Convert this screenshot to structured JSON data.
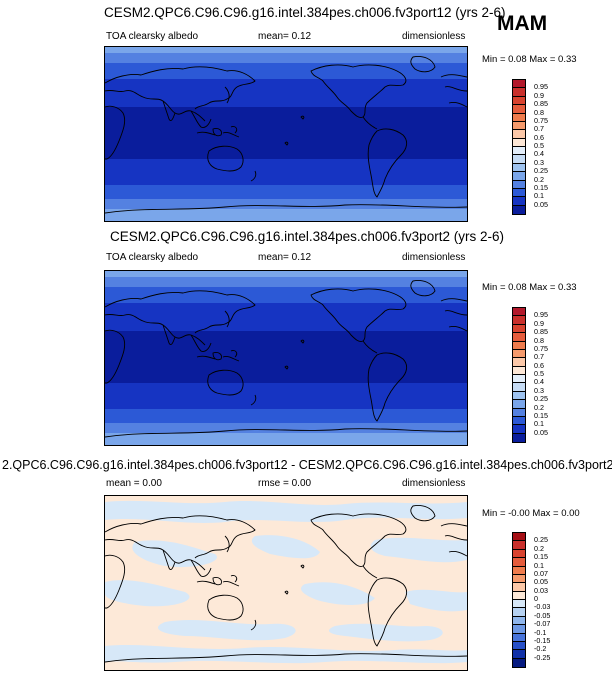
{
  "season": "MAM",
  "panels": [
    {
      "title": "CESM2.QPC6.C96.C96.g16.intel.384pes.ch006.fv3port12 (yrs 2-6)",
      "variable": "TOA clearsky albedo",
      "stat1": "mean=  0.12",
      "stat2": "",
      "units": "dimensionless",
      "minmax": "Min =  0.08 Max =  0.33",
      "levels": [
        "0.95",
        "0.9",
        "0.85",
        "0.8",
        "0.75",
        "0.7",
        "0.6",
        "0.5",
        "0.4",
        "0.3",
        "0.25",
        "0.2",
        "0.15",
        "0.1",
        "0.05"
      ],
      "colors": [
        "#b2182b",
        "#c9302c",
        "#d8432f",
        "#e55c3c",
        "#ef7c4d",
        "#f59a6c",
        "#fcc8a8",
        "#fde7d6",
        "#e3eefa",
        "#c6dcf5",
        "#9ec3f0",
        "#7aa6ea",
        "#5481e1",
        "#2c59d6",
        "#1634c2",
        "#0a1d9c"
      ]
    },
    {
      "title": "CESM2.QPC6.C96.C96.g16.intel.384pes.ch006.fv3port2 (yrs 2-6)",
      "variable": "TOA clearsky albedo",
      "stat1": "mean=  0.12",
      "stat2": "",
      "units": "dimensionless",
      "minmax": "Min =  0.08 Max =  0.33",
      "levels": [
        "0.95",
        "0.9",
        "0.85",
        "0.8",
        "0.75",
        "0.7",
        "0.6",
        "0.5",
        "0.4",
        "0.3",
        "0.25",
        "0.2",
        "0.15",
        "0.1",
        "0.05"
      ],
      "colors": [
        "#b2182b",
        "#c9302c",
        "#d8432f",
        "#e55c3c",
        "#ef7c4d",
        "#f59a6c",
        "#fcc8a8",
        "#fde7d6",
        "#e3eefa",
        "#c6dcf5",
        "#9ec3f0",
        "#7aa6ea",
        "#5481e1",
        "#2c59d6",
        "#1634c2",
        "#0a1d9c"
      ]
    },
    {
      "title": "2.QPC6.C96.C96.g16.intel.384pes.ch006.fv3port12 - CESM2.QPC6.C96.C96.g16.intel.384pes.ch006.fv3port2",
      "variable": "",
      "stat1": "mean =  0.00",
      "stat2": "rmse =  0.00",
      "units": "dimensionless",
      "minmax": "Min = -0.00 Max =  0.00",
      "levels": [
        "0.25",
        "0.2",
        "0.15",
        "0.1",
        "0.07",
        "0.05",
        "0.03",
        "0",
        "-0.03",
        "-0.05",
        "-0.07",
        "-0.1",
        "-0.15",
        "-0.2",
        "-0.25"
      ],
      "colors": [
        "#a50f15",
        "#c9302c",
        "#d8432f",
        "#e55c3c",
        "#ef7c4d",
        "#f59a6c",
        "#fcc8a8",
        "#fde9d8",
        "#d7e8f8",
        "#b6d2f2",
        "#8fb6ec",
        "#6d98e4",
        "#4874da",
        "#2750c8",
        "#1131a8",
        "#061a80"
      ]
    }
  ],
  "colors": {
    "band_darkest": "#0a1d9c",
    "band_dark": "#1634c2",
    "band_mid": "#2c59d6",
    "band_light": "#5481e1",
    "band_lighter": "#7aa6ea",
    "diff_bg": "#fde9d8",
    "diff_blue": "#d7e8f8"
  }
}
